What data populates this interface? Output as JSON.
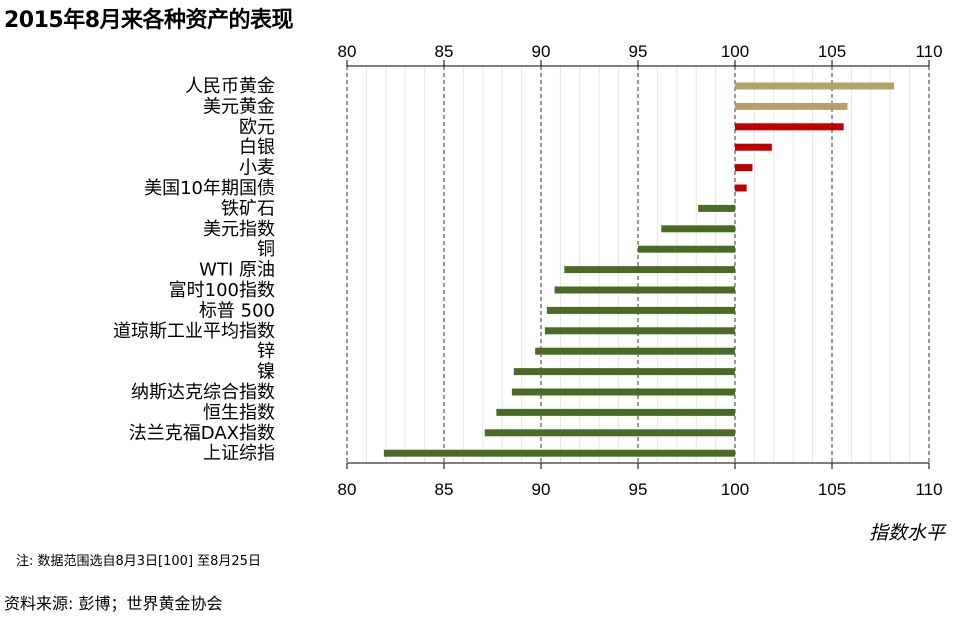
{
  "title": "2015年8月来各种资产的表现",
  "footnote": "注: 数据范围选自8月3日[100] 至8月25日",
  "source": "资料来源: 彭博；世界黄金协会",
  "chart_data": {
    "type": "bar",
    "orientation": "horizontal",
    "title": "2015年8月来各种资产的表现",
    "xlabel": "指数水平",
    "ylabel": "",
    "xlim": [
      80,
      110
    ],
    "xticks": [
      80,
      85,
      90,
      95,
      100,
      105,
      110
    ],
    "baseline": 100,
    "grid": true,
    "categories": [
      "人民币黄金",
      "美元黄金",
      "欧元",
      "白银",
      "小麦",
      "美国10年期国债",
      "铁矿石",
      "美元指数",
      "铜",
      "WTI 原油",
      "富时100指数",
      "标普 500",
      "道琼斯工业平均指数",
      "锌",
      "镍",
      "纳斯达克综合指数",
      "恒生指数",
      "法兰克福DAX指数",
      "上证综指"
    ],
    "values": [
      108.2,
      105.8,
      105.6,
      101.9,
      100.9,
      100.6,
      98.1,
      96.2,
      95.0,
      91.2,
      90.7,
      90.3,
      90.2,
      89.7,
      88.6,
      88.5,
      87.7,
      87.1,
      81.9
    ],
    "colors": [
      "#b5a06a",
      "#b5a06a",
      "#c00000",
      "#c00000",
      "#c00000",
      "#c00000",
      "#4a6a26",
      "#4a6a26",
      "#4a6a26",
      "#4a6a26",
      "#4a6a26",
      "#4a6a26",
      "#4a6a26",
      "#4a6a26",
      "#4a6a26",
      "#4a6a26",
      "#4a6a26",
      "#4a6a26",
      "#4a6a26"
    ]
  }
}
